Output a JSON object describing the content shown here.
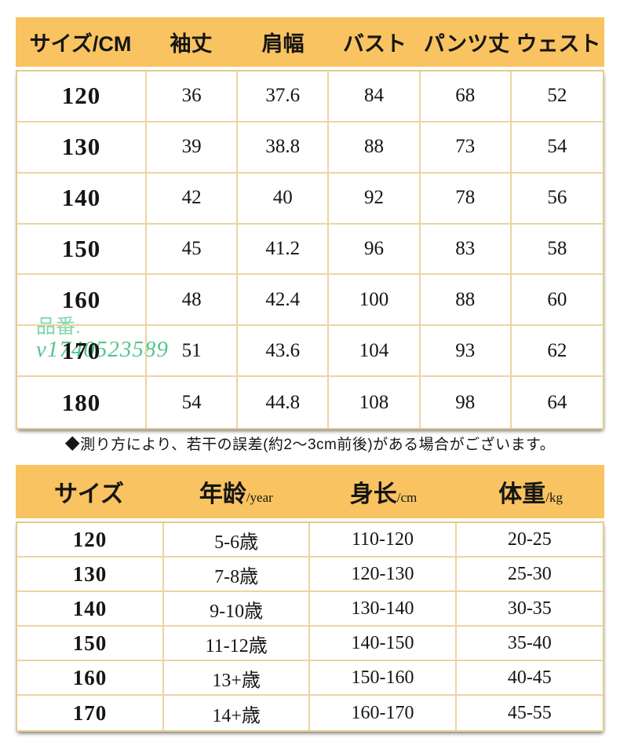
{
  "colors": {
    "header_bg": "#F8C360",
    "grid_line": "#EAD6A0",
    "outer_border": "#E3CB8E",
    "text": "#151515",
    "watermark_green": "#3FBF7F"
  },
  "size_table": {
    "headers": [
      "サイズ/CM",
      "袖丈",
      "肩幅",
      "バスト",
      "パンツ丈",
      "ウェスト"
    ],
    "rows": [
      [
        "120",
        "36",
        "37.6",
        "84",
        "68",
        "52"
      ],
      [
        "130",
        "39",
        "38.8",
        "88",
        "73",
        "54"
      ],
      [
        "140",
        "42",
        "40",
        "92",
        "78",
        "56"
      ],
      [
        "150",
        "45",
        "41.2",
        "96",
        "83",
        "58"
      ],
      [
        "160",
        "48",
        "42.4",
        "100",
        "88",
        "60"
      ],
      [
        "170",
        "51",
        "43.6",
        "104",
        "93",
        "62"
      ],
      [
        "180",
        "54",
        "44.8",
        "108",
        "98",
        "64"
      ]
    ]
  },
  "note": "◆測り方により、若干の誤差(約2～3cm前後)がある場合がございます。",
  "watermark": {
    "line1": "品番:",
    "line2": "v1740523589"
  },
  "age_table": {
    "headers": [
      {
        "label": "サイズ",
        "unit": ""
      },
      {
        "label": "年龄",
        "unit": "/year"
      },
      {
        "label": "身长",
        "unit": "/cm"
      },
      {
        "label": "体重",
        "unit": "/kg"
      }
    ],
    "rows": [
      [
        "120",
        "5-6歳",
        "110-120",
        "20-25"
      ],
      [
        "130",
        "7-8歳",
        "120-130",
        "25-30"
      ],
      [
        "140",
        "9-10歳",
        "130-140",
        "30-35"
      ],
      [
        "150",
        "11-12歳",
        "140-150",
        "35-40"
      ],
      [
        "160",
        "13+歳",
        "150-160",
        "40-45"
      ],
      [
        "170",
        "14+歳",
        "160-170",
        "45-55"
      ]
    ]
  }
}
